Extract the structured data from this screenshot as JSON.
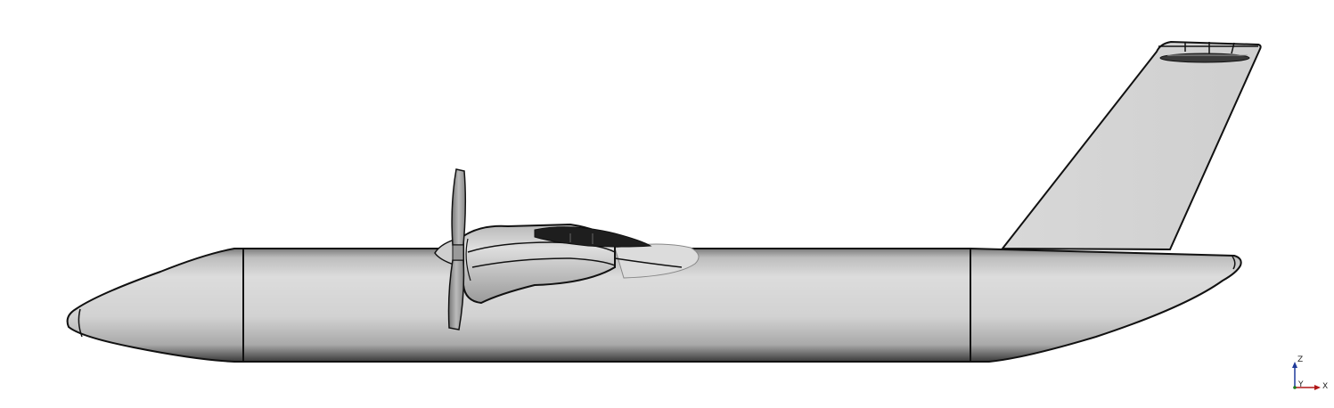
{
  "view": {
    "background": "#ffffff",
    "model_fill": "#d6d6d6",
    "edge_color": "#111111"
  },
  "triad": {
    "z_label": "Z",
    "y_label": "Y",
    "x_label": "X",
    "z_color": "#1f3a9a",
    "x_color": "#b01717",
    "y_color": "#1a7a1a"
  }
}
